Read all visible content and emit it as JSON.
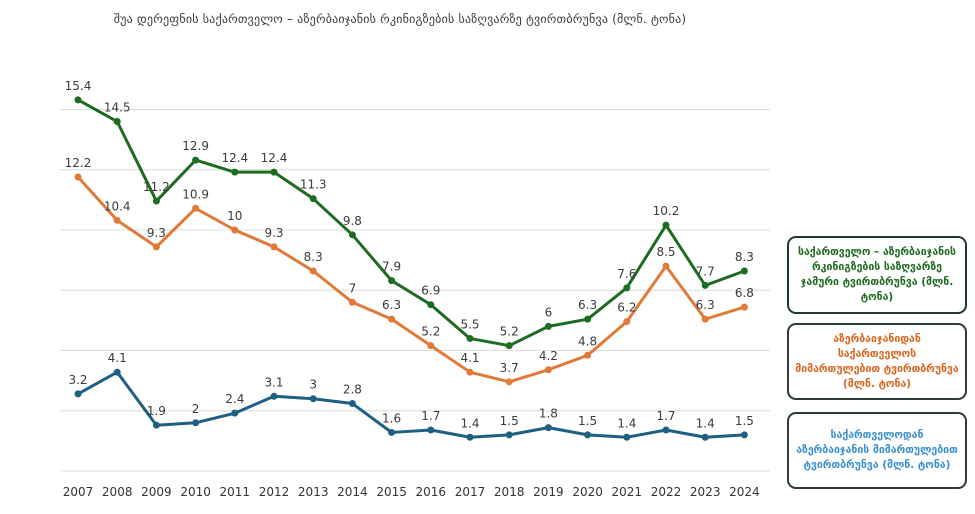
{
  "chart_data": {
    "type": "line",
    "title": "შუა დერეფნის საქართველო – აზერბაიჯანის რკინიგზების საზღვარზე ტვირთბრუნვა (მლნ. ტონა)",
    "categories": [
      "2007",
      "2008",
      "2009",
      "2010",
      "2011",
      "2012",
      "2013",
      "2014",
      "2015",
      "2016",
      "2017",
      "2018",
      "2019",
      "2020",
      "2021",
      "2022",
      "2023",
      "2024"
    ],
    "ylim": [
      0,
      17
    ],
    "grid": true,
    "legend": "right",
    "series": [
      {
        "name": "საქართველო – აზერბაიჯანის რკინიგზების საზღვარზე ჯამური ტვირთბრუნვა (მლნ. ტონა)",
        "color": "#1e6b22",
        "values": [
          15.4,
          14.5,
          11.2,
          12.9,
          12.4,
          12.4,
          11.3,
          9.8,
          7.9,
          6.9,
          5.5,
          5.2,
          6,
          6.3,
          7.6,
          10.2,
          7.7,
          8.3
        ]
      },
      {
        "name": "აზერბაიჯანიდან საქართველოს მიმართულებით ტვირთბრუნვა (მლნ. ტონა)",
        "color": "#e07a38",
        "values": [
          12.2,
          10.4,
          9.3,
          10.9,
          10,
          9.3,
          8.3,
          7,
          6.3,
          5.2,
          4.1,
          3.7,
          4.2,
          4.8,
          6.2,
          8.5,
          6.3,
          6.8
        ]
      },
      {
        "name": "საქართველოდან აზერბაიჯანის მიმართულებით ტვირთბრუნვა (მლნ. ტონა)",
        "color": "#1f5f82",
        "values": [
          3.2,
          4.1,
          1.9,
          2,
          2.4,
          3.1,
          3,
          2.8,
          1.6,
          1.7,
          1.4,
          1.5,
          1.8,
          1.5,
          1.4,
          1.7,
          1.4,
          1.5
        ]
      }
    ]
  }
}
